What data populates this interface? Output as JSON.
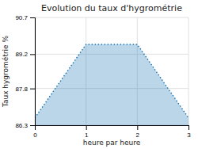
{
  "chart_data": {
    "type": "area",
    "title": "Evolution du taux d'hygrométrie",
    "xlabel": "heure par heure",
    "ylabel": "Taux hygrométrie %",
    "x": [
      0,
      1,
      2,
      3
    ],
    "values": [
      86.6,
      89.6,
      89.6,
      86.6
    ],
    "xlim": [
      0,
      3
    ],
    "ylim": [
      86.3,
      90.7
    ],
    "xticks": [
      0,
      1,
      2,
      3
    ],
    "yticks": [
      86.3,
      87.8,
      89.2,
      90.7
    ],
    "grid": true,
    "line_style": "dotted"
  }
}
